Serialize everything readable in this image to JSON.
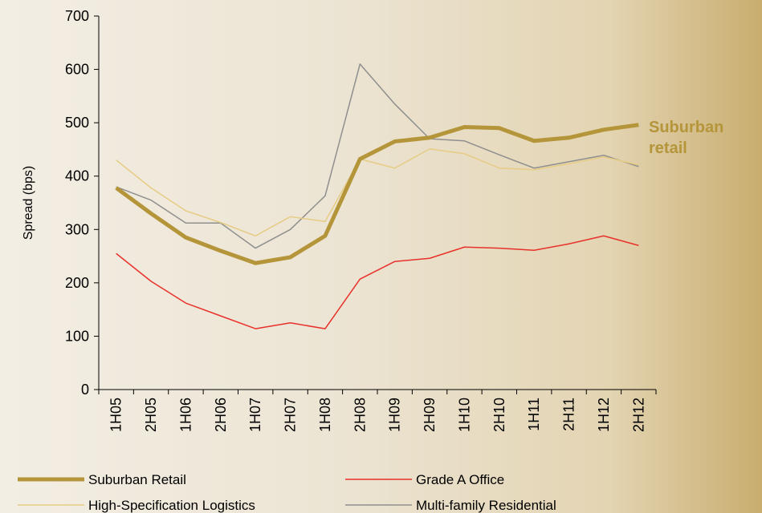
{
  "chart_data": {
    "type": "line",
    "y_label": "Spread (bps)",
    "annotation": "Suburban retail",
    "categories": [
      "1H05",
      "2H05",
      "1H06",
      "2H06",
      "1H07",
      "2H07",
      "1H08",
      "2H08",
      "1H09",
      "2H09",
      "1H10",
      "2H10",
      "1H11",
      "2H11",
      "1H12",
      "2H12"
    ],
    "series": [
      {
        "name": "Suburban Retail",
        "color": "#b5953a",
        "values": [
          378,
          330,
          285,
          260,
          237,
          248,
          288,
          432,
          465,
          472,
          492,
          490,
          466,
          472,
          487,
          496
        ]
      },
      {
        "name": "Grade A Office",
        "color": "#e8312a",
        "values": [
          255,
          203,
          162,
          138,
          114,
          125,
          114,
          207,
          240,
          246,
          267,
          265,
          261,
          273,
          288,
          270
        ]
      },
      {
        "name": "High-Specification Logistics",
        "color": "#e6cc85",
        "values": [
          430,
          378,
          335,
          313,
          288,
          324,
          315,
          432,
          415,
          451,
          442,
          415,
          412,
          423,
          436,
          421
        ]
      },
      {
        "name": "Multi-family Residential",
        "color": "#8f8f8f",
        "values": [
          380,
          355,
          312,
          312,
          265,
          300,
          363,
          610,
          535,
          470,
          466,
          440,
          415,
          427,
          439,
          418
        ]
      }
    ],
    "ylim": [
      0,
      700
    ],
    "yticks": [
      0,
      100,
      200,
      300,
      400,
      500,
      600,
      700
    ]
  }
}
